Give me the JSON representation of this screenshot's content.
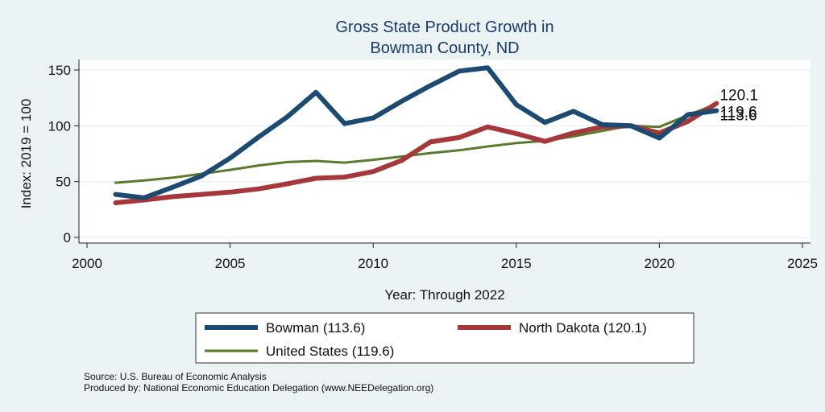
{
  "chart_data": {
    "type": "line",
    "title": [
      "Gross State Product Growth in",
      "Bowman County, ND"
    ],
    "xlabel": "Year: Through 2022",
    "ylabel": "Index: 2019 = 100",
    "xlim": [
      2000,
      2025
    ],
    "ylim": [
      0,
      160
    ],
    "xticks": [
      2000,
      2005,
      2010,
      2015,
      2020,
      2025
    ],
    "yticks": [
      0,
      50,
      100,
      150
    ],
    "grid": true,
    "x": [
      2001,
      2002,
      2003,
      2004,
      2005,
      2006,
      2007,
      2008,
      2009,
      2010,
      2011,
      2012,
      2013,
      2014,
      2015,
      2016,
      2017,
      2018,
      2019,
      2020,
      2021,
      2022
    ],
    "series": [
      {
        "name": "Bowman",
        "color": "#1c4a70",
        "width": 6,
        "values": [
          38.5,
          35.5,
          45,
          55,
          71,
          90,
          108,
          130,
          102,
          107,
          122,
          136,
          149,
          152,
          119,
          103,
          113,
          101,
          100,
          89,
          110,
          113.6
        ]
      },
      {
        "name": "North Dakota",
        "color": "#a6373a",
        "width": 6,
        "values": [
          31,
          33.5,
          36.5,
          38.5,
          40.5,
          43.5,
          48,
          53,
          54,
          59,
          69,
          85.5,
          89.5,
          99,
          93,
          86,
          93.5,
          99,
          100,
          93.5,
          104,
          120.1
        ]
      },
      {
        "name": "United States",
        "color": "#5a7a2e",
        "width": 3,
        "values": [
          49,
          51,
          53.5,
          57,
          60.5,
          64.5,
          67.5,
          68.5,
          67,
          69.5,
          72.5,
          75.5,
          78,
          81.5,
          84.5,
          86.5,
          90.5,
          95.5,
          100,
          99,
          109.5,
          119.6
        ]
      }
    ],
    "end_labels": [
      "120.1",
      "119.6",
      "113.6"
    ],
    "legend_position": "bottom"
  },
  "legend": {
    "items": [
      {
        "label": "Bowman  (113.6)",
        "color": "#1c4a70",
        "width": 6
      },
      {
        "label": "North Dakota (120.1)",
        "color": "#a6373a",
        "width": 6
      },
      {
        "label": "United States (119.6)",
        "color": "#5a7a2e",
        "width": 3
      }
    ]
  },
  "source": {
    "line1": "Source: U.S. Bureau of Economic Analysis",
    "line2": "Produced by: National Economic Education Delegation (www.NEEDelegation.org)"
  }
}
